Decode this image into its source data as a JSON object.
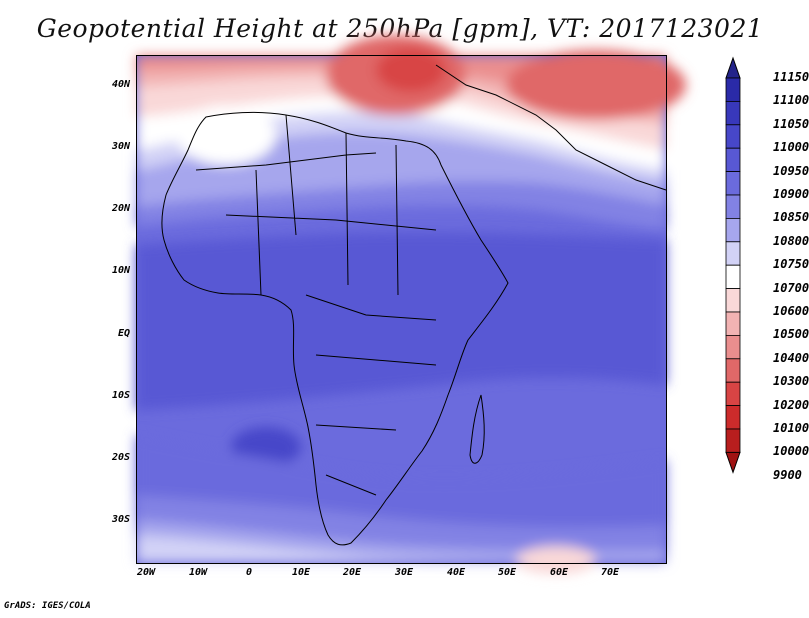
{
  "title": "Geopotential Height at 250hPa [gpm], VT: 2017123021",
  "footer": "GrADS: IGES/COLA",
  "lat_labels": [
    "40N",
    "30N",
    "20N",
    "10N",
    "EQ",
    "10S",
    "20S",
    "30S"
  ],
  "lon_labels": [
    "20W",
    "10W",
    "0",
    "10E",
    "20E",
    "30E",
    "40E",
    "50E",
    "60E",
    "70E"
  ],
  "colorbar": {
    "levels": [
      "11150",
      "11100",
      "11050",
      "11000",
      "10950",
      "10900",
      "10850",
      "10800",
      "10750",
      "10700",
      "10600",
      "10500",
      "10400",
      "10300",
      "10200",
      "10100",
      "10000",
      "9900"
    ],
    "colors": [
      "#23238a",
      "#2a2aa8",
      "#3838bb",
      "#4747c9",
      "#5858d4",
      "#6b6bdd",
      "#8282e4",
      "#a6a6ed",
      "#d2d2f6",
      "#ffffff",
      "#f9d8d8",
      "#f2b3b3",
      "#ea8e8e",
      "#e06868",
      "#d84444",
      "#cc2b2b",
      "#b81e1e",
      "#a01212"
    ]
  },
  "colors": {
    "land_outline": "#000000",
    "frame": "#000000"
  }
}
